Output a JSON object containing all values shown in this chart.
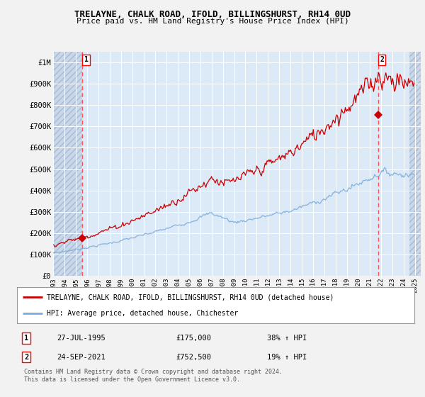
{
  "title": "TRELAYNE, CHALK ROAD, IFOLD, BILLINGSHURST, RH14 0UD",
  "subtitle": "Price paid vs. HM Land Registry's House Price Index (HPI)",
  "xlim_start": 1993.0,
  "xlim_end": 2025.5,
  "ylim": [
    0,
    1050000
  ],
  "yticks": [
    0,
    100000,
    200000,
    300000,
    400000,
    500000,
    600000,
    700000,
    800000,
    900000,
    1000000
  ],
  "ytick_labels": [
    "£0",
    "£100K",
    "£200K",
    "£300K",
    "£400K",
    "£500K",
    "£600K",
    "£700K",
    "£800K",
    "£900K",
    "£1M"
  ],
  "xticks": [
    1993,
    1994,
    1995,
    1996,
    1997,
    1998,
    1999,
    2000,
    2001,
    2002,
    2003,
    2004,
    2005,
    2006,
    2007,
    2008,
    2009,
    2010,
    2011,
    2012,
    2013,
    2014,
    2015,
    2016,
    2017,
    2018,
    2019,
    2020,
    2021,
    2022,
    2023,
    2024,
    2025
  ],
  "background_color": "#dce9f7",
  "hatch_color": "#c8d8ea",
  "grid_color": "#ffffff",
  "sale1_x": 1995.57,
  "sale1_y": 175000,
  "sale1_label": "1",
  "sale1_date": "27-JUL-1995",
  "sale1_price": "£175,000",
  "sale1_hpi": "38% ↑ HPI",
  "sale2_x": 2021.73,
  "sale2_y": 752500,
  "sale2_label": "2",
  "sale2_date": "24-SEP-2021",
  "sale2_price": "£752,500",
  "sale2_hpi": "19% ↑ HPI",
  "line_color": "#cc0000",
  "hpi_color": "#7aaddd",
  "legend_line1": "TRELAYNE, CHALK ROAD, IFOLD, BILLINGSHURST, RH14 0UD (detached house)",
  "legend_line2": "HPI: Average price, detached house, Chichester",
  "footnote": "Contains HM Land Registry data © Crown copyright and database right 2024.\nThis data is licensed under the Open Government Licence v3.0.",
  "fig_width": 6.0,
  "fig_height": 5.6,
  "fig_dpi": 100
}
